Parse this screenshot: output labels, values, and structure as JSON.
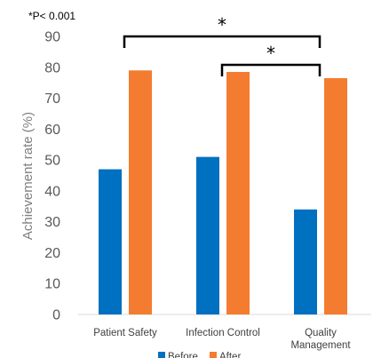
{
  "chart_data": {
    "type": "bar",
    "categories": [
      "Patient Safety",
      "Infection Control",
      "Quality Management"
    ],
    "category_lines": [
      [
        "Patient Safety"
      ],
      [
        "Infection Control"
      ],
      [
        "Quality",
        "Management"
      ]
    ],
    "series": [
      {
        "name": "Before",
        "values": [
          47,
          51,
          34
        ],
        "color": "#0070c0"
      },
      {
        "name": "After",
        "values": [
          79,
          78.5,
          76.5
        ],
        "color": "#f47c30"
      }
    ],
    "title": "",
    "xlabel": "",
    "ylabel": "Achievement rate (%)",
    "ylim": [
      0,
      90
    ],
    "yticks": [
      0,
      10,
      20,
      30,
      40,
      50,
      60,
      70,
      80,
      90
    ],
    "grid": false,
    "legend": "bottom",
    "annotations": {
      "note": "*P< 0.001",
      "brackets": [
        {
          "from": "Patient Safety",
          "to": "Quality Management",
          "label": "*"
        },
        {
          "from": "Infection Control",
          "to": "Quality Management",
          "label": "*"
        }
      ]
    }
  }
}
